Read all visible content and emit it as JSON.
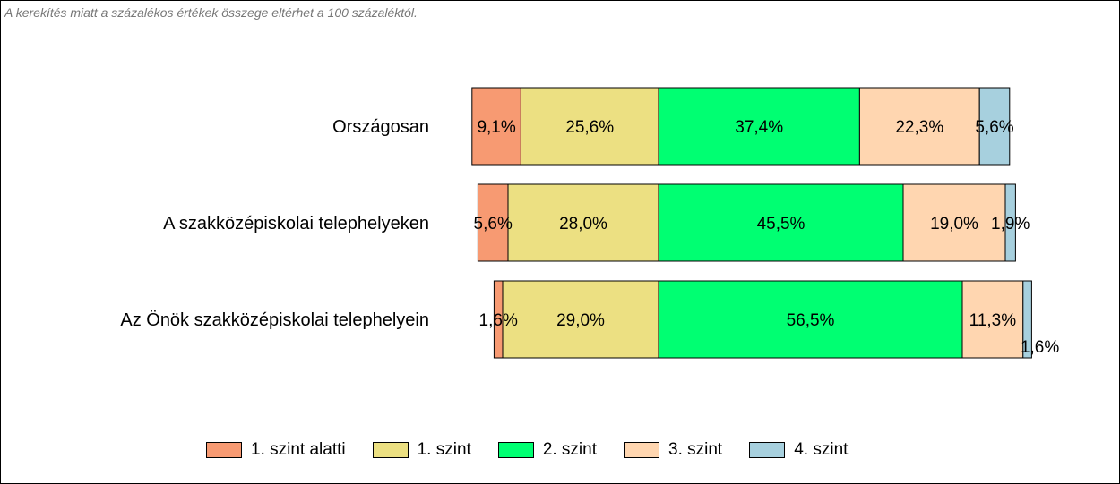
{
  "note": "A kerekítés miatt a  százalékos értékek összege eltérhet a 100 százaléktól.",
  "chart_data": {
    "type": "bar",
    "orientation": "horizontal",
    "stacking": "stacked-diverging",
    "categories": [
      "Országosan",
      "A szakközépiskolai telephelyeken",
      "Az Önök szakközépiskolai telephelyein"
    ],
    "series": [
      {
        "name": "1. szint alatti",
        "color": "#F79A72",
        "values": [
          9.1,
          5.6,
          1.6
        ],
        "labels": [
          "9,1%",
          "5,6%",
          "1,6%"
        ]
      },
      {
        "name": "1. szint",
        "color": "#ECE082",
        "values": [
          25.6,
          28.0,
          29.0
        ],
        "labels": [
          "25,6%",
          "28,0%",
          "29,0%"
        ]
      },
      {
        "name": "2. szint",
        "color": "#00FF72",
        "values": [
          37.4,
          45.5,
          56.5
        ],
        "labels": [
          "37,4%",
          "45,5%",
          "56,5%"
        ]
      },
      {
        "name": "3. szint",
        "color": "#FFD6B0",
        "values": [
          22.3,
          19.0,
          11.3
        ],
        "labels": [
          "22,3%",
          "19,0%",
          "11,3%"
        ]
      },
      {
        "name": "4. szint",
        "color": "#A7D0DE",
        "values": [
          5.6,
          1.9,
          1.6
        ],
        "labels": [
          "5,6%",
          "1,9%",
          "1,6%"
        ]
      }
    ],
    "baseline_between": [
      "1. szint",
      "2. szint"
    ],
    "legend": "bottom",
    "grid": false
  }
}
